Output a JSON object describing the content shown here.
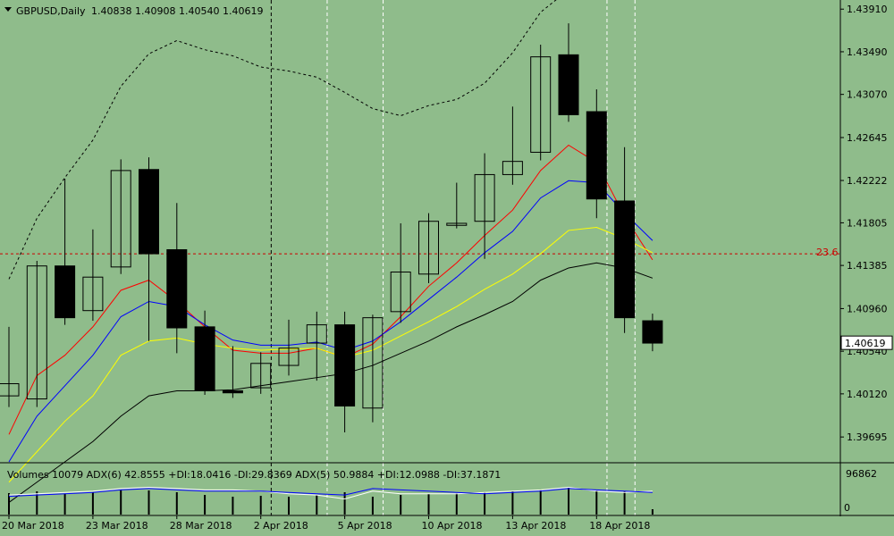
{
  "header": {
    "symbol_label": "GBPUSD,Daily",
    "ohlc_text": "1.40838 1.40908 1.40540 1.40619"
  },
  "colors": {
    "background": "#8fbc8b",
    "bull_candle": "#ffffff",
    "bear_candle": "#000000",
    "ma_red": "#ff0000",
    "ma_blue": "#0000ff",
    "ma_yellow": "#ffff00",
    "ma_black": "#000000",
    "fib_line": "#cc0000",
    "adx_main": "#0000ff",
    "adx_di": "#ffffff",
    "current_price_box": "#ffffff"
  },
  "chart_data": {
    "type": "candlestick",
    "title": "GBPUSD,Daily",
    "ylim": [
      1.3945,
      1.44
    ],
    "y_ticks": [
      "1.43910",
      "1.43490",
      "1.43070",
      "1.42645",
      "1.42222",
      "1.41805",
      "1.41385",
      "1.40960",
      "1.40540",
      "1.40120",
      "1.39695"
    ],
    "current_price": "1.40619",
    "x_tick_labels": [
      {
        "i": 0,
        "label": "20 Mar 2018"
      },
      {
        "i": 3,
        "label": "23 Mar 2018"
      },
      {
        "i": 6,
        "label": "28 Mar 2018"
      },
      {
        "i": 9,
        "label": "2 Apr 2018"
      },
      {
        "i": 12,
        "label": "5 Apr 2018"
      },
      {
        "i": 15,
        "label": "10 Apr 2018"
      },
      {
        "i": 18,
        "label": "13 Apr 2018"
      },
      {
        "i": 21,
        "label": "18 Apr 2018"
      }
    ],
    "candles": [
      {
        "o": 1.401,
        "h": 1.4078,
        "l": 1.3999,
        "c": 1.4022
      },
      {
        "o": 1.4007,
        "h": 1.4143,
        "l": 1.3999,
        "c": 1.4138
      },
      {
        "o": 1.4138,
        "h": 1.4224,
        "l": 1.408,
        "c": 1.4087
      },
      {
        "o": 1.4094,
        "h": 1.4174,
        "l": 1.4084,
        "c": 1.4127
      },
      {
        "o": 1.4137,
        "h": 1.4243,
        "l": 1.413,
        "c": 1.4232
      },
      {
        "o": 1.4233,
        "h": 1.4245,
        "l": 1.4064,
        "c": 1.415
      },
      {
        "o": 1.4154,
        "h": 1.42,
        "l": 1.4052,
        "c": 1.4077
      },
      {
        "o": 1.4078,
        "h": 1.4094,
        "l": 1.4011,
        "c": 1.4015
      },
      {
        "o": 1.4015,
        "h": 1.4059,
        "l": 1.4008,
        "c": 1.4013
      },
      {
        "o": 1.4018,
        "h": 1.4053,
        "l": 1.4012,
        "c": 1.4042
      },
      {
        "o": 1.404,
        "h": 1.4085,
        "l": 1.403,
        "c": 1.4057
      },
      {
        "o": 1.4062,
        "h": 1.4093,
        "l": 1.4025,
        "c": 1.408
      },
      {
        "o": 1.408,
        "h": 1.4093,
        "l": 1.3974,
        "c": 1.4
      },
      {
        "o": 1.3998,
        "h": 1.409,
        "l": 1.3984,
        "c": 1.4087
      },
      {
        "o": 1.4093,
        "h": 1.418,
        "l": 1.4082,
        "c": 1.4132
      },
      {
        "o": 1.413,
        "h": 1.419,
        "l": 1.4121,
        "c": 1.4182
      },
      {
        "o": 1.4178,
        "h": 1.422,
        "l": 1.4175,
        "c": 1.418
      },
      {
        "o": 1.4182,
        "h": 1.4249,
        "l": 1.4145,
        "c": 1.4228
      },
      {
        "o": 1.4228,
        "h": 1.4295,
        "l": 1.4218,
        "c": 1.4241
      },
      {
        "o": 1.425,
        "h": 1.4356,
        "l": 1.4242,
        "c": 1.4344
      },
      {
        "o": 1.4346,
        "h": 1.4377,
        "l": 1.428,
        "c": 1.4287
      },
      {
        "o": 1.429,
        "h": 1.4312,
        "l": 1.4185,
        "c": 1.4204
      },
      {
        "o": 1.4202,
        "h": 1.4255,
        "l": 1.4072,
        "c": 1.4087
      },
      {
        "o": 1.4084,
        "h": 1.4091,
        "l": 1.4054,
        "c": 1.4062
      }
    ],
    "moving_averages": [
      {
        "color": "ma_red",
        "values": [
          1.3972,
          1.403,
          1.405,
          1.4078,
          1.4114,
          1.4124,
          1.4103,
          1.4078,
          1.4055,
          1.4052,
          1.4052,
          1.4057,
          1.4048,
          1.4061,
          1.4088,
          1.4118,
          1.4141,
          1.4168,
          1.4193,
          1.4232,
          1.4257,
          1.424,
          1.4187,
          1.4144
        ]
      },
      {
        "color": "ma_blue",
        "values": [
          1.3945,
          1.399,
          1.402,
          1.405,
          1.4088,
          1.4103,
          1.4098,
          1.408,
          1.4065,
          1.406,
          1.406,
          1.4063,
          1.4055,
          1.4064,
          1.4083,
          1.4105,
          1.4127,
          1.4151,
          1.4172,
          1.4205,
          1.4222,
          1.422,
          1.419,
          1.4163
        ]
      },
      {
        "color": "ma_yellow",
        "values": [
          1.3925,
          1.3955,
          1.3985,
          1.401,
          1.405,
          1.4064,
          1.4067,
          1.4061,
          1.4057,
          1.4055,
          1.4056,
          1.4057,
          1.4048,
          1.4055,
          1.4069,
          1.4083,
          1.4098,
          1.4115,
          1.413,
          1.415,
          1.4173,
          1.4176,
          1.4165,
          1.4151
        ]
      },
      {
        "color": "ma_black",
        "values": [
          1.3905,
          1.3925,
          1.3945,
          1.3965,
          1.399,
          1.401,
          1.4015,
          1.4015,
          1.4016,
          1.402,
          1.4024,
          1.4028,
          1.4032,
          1.404,
          1.4052,
          1.4064,
          1.4078,
          1.409,
          1.4103,
          1.4124,
          1.4136,
          1.4141,
          1.4136,
          1.4126
        ]
      }
    ],
    "upper_band": [
      1.4125,
      1.4185,
      1.4225,
      1.4262,
      1.4315,
      1.4347,
      1.436,
      1.4351,
      1.4345,
      1.4334,
      1.433,
      1.4324,
      1.4309,
      1.4293,
      1.4286,
      1.4296,
      1.4302,
      1.4318,
      1.4348,
      1.4388,
      1.441,
      1.4415,
      1.441,
      1.4405
    ],
    "period_separators": [
      9,
      11,
      13,
      21,
      22
    ],
    "fib_level": {
      "label": "23.6",
      "price": 1.415
    },
    "indicator_panel": {
      "caption": "Volumes 10079  ADX(6) 42.8555 +DI:18.0416 -DI:29.8369  ADX(5) 50.9884 +DI:12.0988 -DI:37.1871",
      "y_max_label": "96862",
      "y_min_label": "0",
      "adx_main": [
        12,
        13,
        14,
        15,
        17,
        18,
        17,
        16,
        16,
        16,
        15,
        14,
        13,
        18,
        17,
        16,
        15,
        14,
        15,
        16,
        18,
        17,
        16,
        15
      ],
      "adx_di": [
        13,
        14,
        15,
        16,
        18,
        19,
        18,
        17,
        17,
        16,
        14,
        13,
        10,
        16,
        14,
        14,
        14,
        15,
        16,
        17,
        19,
        16,
        15,
        16
      ],
      "volume": [
        24,
        26,
        23,
        25,
        28,
        27,
        25,
        22,
        20,
        21,
        20,
        22,
        25,
        20,
        22,
        23,
        24,
        25,
        26,
        28,
        30,
        27,
        26,
        6
      ]
    }
  }
}
